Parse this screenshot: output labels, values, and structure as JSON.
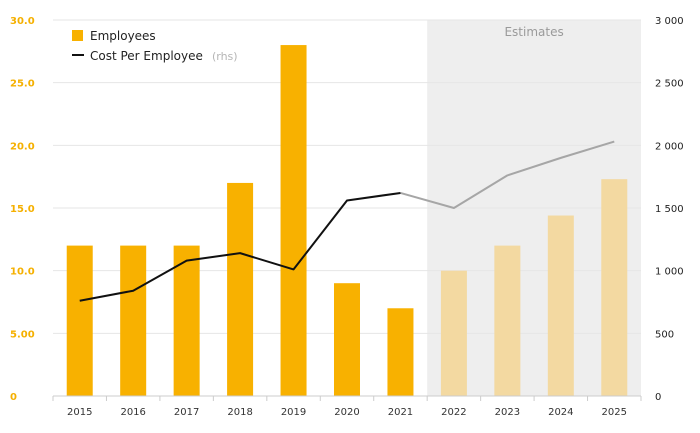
{
  "chart_data": {
    "type": "bar+line",
    "categories": [
      "2015",
      "2016",
      "2017",
      "2018",
      "2019",
      "2020",
      "2021",
      "2022",
      "2023",
      "2024",
      "2025"
    ],
    "series": [
      {
        "name": "Employees",
        "type": "bar",
        "axis": "left",
        "values": [
          12,
          12,
          12,
          17,
          28,
          9,
          7,
          10,
          12,
          14.4,
          17.3
        ],
        "estimated": [
          false,
          false,
          false,
          false,
          false,
          false,
          false,
          true,
          true,
          true,
          true
        ]
      },
      {
        "name": "Cost Per Employee",
        "suffix": "(rhs)",
        "type": "line",
        "axis": "right",
        "values": [
          760,
          840,
          1080,
          1140,
          1010,
          1560,
          1620,
          1500,
          1760,
          1900,
          2030
        ],
        "estimated": [
          false,
          false,
          false,
          false,
          false,
          false,
          false,
          true,
          true,
          true,
          true
        ]
      }
    ],
    "left_axis": {
      "ylim": [
        0,
        30
      ],
      "ticks": [
        0,
        5,
        10,
        15,
        20,
        25,
        30
      ],
      "tick_labels": [
        "0",
        "5.00",
        "10.0",
        "15.0",
        "20.0",
        "25.0",
        "30.0"
      ]
    },
    "right_axis": {
      "ylim": [
        0,
        3000
      ],
      "ticks": [
        0,
        500,
        1000,
        1500,
        2000,
        2500,
        3000
      ],
      "tick_labels": [
        "0",
        "500",
        "1 000",
        "1 500",
        "2 000",
        "2 500",
        "3 000"
      ]
    },
    "estimates_label": "Estimates",
    "estimates_from": "2022",
    "legend": [
      {
        "label": "Employees",
        "marker": "square"
      },
      {
        "label": "Cost Per Employee",
        "suffix": "(rhs)",
        "marker": "line"
      }
    ],
    "legend_position": "top-left"
  },
  "colors": {
    "bar": "#f8b100",
    "bar_estimate": "#f3d9a1",
    "line": "#111111",
    "line_estimate": "#a6a6a6",
    "estimate_bg": "#eeeeee",
    "left_tick": "#f5b000",
    "grid": "#e6e6e6"
  }
}
